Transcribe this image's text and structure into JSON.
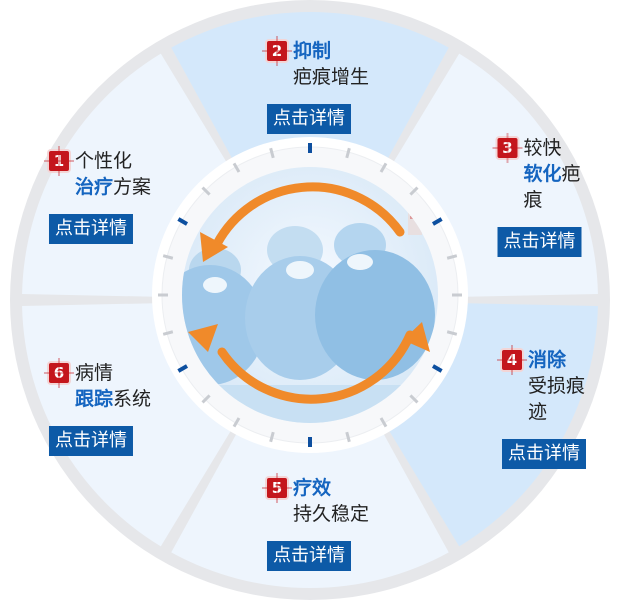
{
  "segments": [
    {
      "num": "1",
      "line1_plain": "个性化",
      "line2_bold": "治疗",
      "line2_plain": "方案",
      "button": "点击详情"
    },
    {
      "num": "2",
      "line1_bold": "抑制",
      "line2_plain": "疤痕增生",
      "button": "点击详情"
    },
    {
      "num": "3",
      "line1_plain": "较快",
      "line2_bold": "软化",
      "line2_plain": "疤痕",
      "button": "点击详情"
    },
    {
      "num": "4",
      "line1_bold": "消除",
      "line2_plain": "受损痕迹",
      "button": "点击详情"
    },
    {
      "num": "5",
      "line1_bold": "疗效",
      "line2_plain": "持久稳定",
      "button": "点击详情"
    },
    {
      "num": "6",
      "line1_plain": "病情",
      "line2_bold": "跟踪",
      "line2_plain": "系统",
      "button": "点击详情"
    }
  ],
  "colors": {
    "segment_light": "#eef5fd",
    "segment_highlight": "#d4e8fb",
    "ring": "#e6e7ea",
    "button": "#0d5aa7",
    "bold_text": "#1565c0",
    "number_badge": "#c4161c",
    "arrow": "#f08a2a",
    "tick_blue": "#0d4f9f",
    "tick_grey": "#c9ccd1"
  },
  "center_image": "surgical team operating in blue scrubs"
}
